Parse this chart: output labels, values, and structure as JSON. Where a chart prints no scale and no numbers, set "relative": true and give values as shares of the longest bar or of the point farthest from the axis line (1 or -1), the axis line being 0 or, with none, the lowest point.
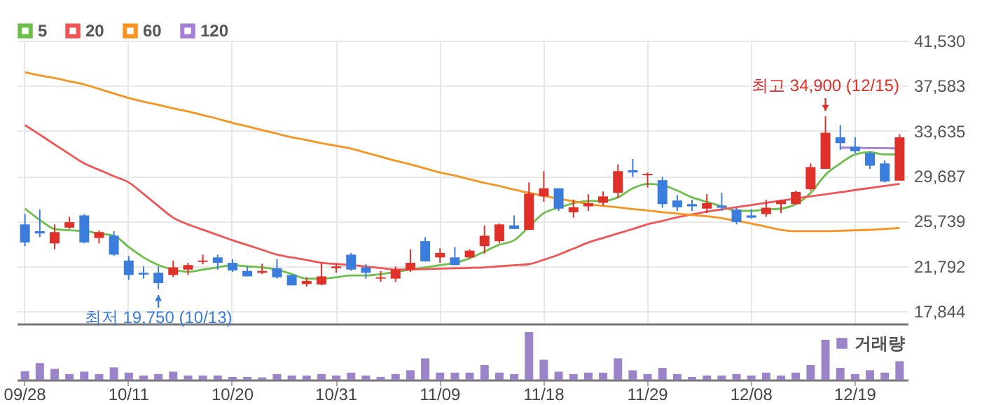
{
  "chart_data": [
    {
      "type": "candlestick",
      "categories": [
        null,
        null,
        null,
        null,
        null,
        null,
        null,
        null,
        null,
        null,
        null,
        null,
        null,
        null,
        null,
        null,
        null,
        null,
        null,
        null,
        null,
        null,
        null,
        null,
        null,
        null,
        null,
        null,
        null,
        null,
        null,
        null,
        null,
        null,
        null,
        null,
        null,
        null,
        null,
        null,
        null,
        null,
        null,
        null,
        null,
        null,
        null,
        null,
        null,
        null,
        null,
        null,
        null,
        null,
        null,
        null,
        null,
        null,
        null,
        null
      ],
      "ohlc": [
        [
          25441,
          26350,
          23544,
          23860
        ],
        [
          24848,
          26746,
          24335,
          24651
        ],
        [
          23781,
          25441,
          23267,
          24769
        ],
        [
          25164,
          26113,
          25045,
          25639
        ],
        [
          26232,
          26350,
          23781,
          23860
        ],
        [
          24256,
          24927,
          23781,
          24769
        ],
        [
          24453,
          24848,
          22674,
          22793
        ],
        [
          22279,
          22674,
          20579,
          21014
        ],
        [
          21211,
          21765,
          20697,
          21053
        ],
        [
          21211,
          21765,
          19750,
          20303
        ],
        [
          21014,
          22279,
          20816,
          21686
        ],
        [
          21488,
          22081,
          21014,
          21884
        ],
        [
          22160,
          22793,
          21963,
          22279
        ],
        [
          22556,
          22793,
          21488,
          22081
        ],
        [
          22081,
          22397,
          21291,
          21409
        ],
        [
          21370,
          21765,
          20895,
          20895
        ],
        [
          21211,
          22002,
          21093,
          21370
        ],
        [
          21607,
          22397,
          20697,
          20816
        ],
        [
          21014,
          21053,
          20105,
          20105
        ],
        [
          20224,
          20816,
          19986,
          20500
        ],
        [
          20184,
          22081,
          20105,
          20895
        ],
        [
          21607,
          22002,
          21211,
          21765
        ],
        [
          22793,
          22951,
          21370,
          21488
        ],
        [
          21686,
          21963,
          20697,
          21211
        ],
        [
          20697,
          21370,
          20421,
          20816
        ],
        [
          20697,
          21765,
          20421,
          21488
        ],
        [
          21488,
          23267,
          21291,
          22081
        ],
        [
          23979,
          24335,
          22200,
          22200
        ],
        [
          22556,
          23346,
          22081,
          22951
        ],
        [
          22556,
          23465,
          21884,
          21884
        ],
        [
          22556,
          23267,
          22476,
          23149
        ],
        [
          23544,
          25362,
          22872,
          24453
        ],
        [
          23979,
          25520,
          23781,
          25441
        ],
        [
          25362,
          26232,
          25045,
          25045
        ],
        [
          24967,
          29118,
          24967,
          28130
        ],
        [
          27892,
          30106,
          27418,
          28604
        ],
        [
          28604,
          28604,
          26627,
          26825
        ],
        [
          26508,
          27615,
          26034,
          26943
        ],
        [
          27022,
          28090,
          26627,
          27299
        ],
        [
          27338,
          28327,
          27101,
          27892
        ],
        [
          28208,
          30699,
          27734,
          30106
        ],
        [
          30185,
          31173,
          29592,
          29988
        ],
        [
          29750,
          29988,
          28683,
          29869
        ],
        [
          29315,
          29592,
          26904,
          27220
        ],
        [
          27536,
          28011,
          26627,
          26943
        ],
        [
          27220,
          27615,
          26627,
          27022
        ],
        [
          26825,
          28090,
          26430,
          27299
        ],
        [
          27101,
          28208,
          26627,
          26904
        ],
        [
          26746,
          26904,
          25441,
          25639
        ],
        [
          26232,
          26786,
          25955,
          26034
        ],
        [
          26350,
          27615,
          26113,
          26904
        ],
        [
          27220,
          27615,
          26430,
          27536
        ],
        [
          27220,
          28406,
          27141,
          28288
        ],
        [
          28525,
          30778,
          28406,
          30462
        ],
        [
          30303,
          34900,
          30303,
          33466
        ],
        [
          33071,
          34138,
          31964,
          32557
        ],
        [
          32241,
          33071,
          31648,
          31845
        ],
        [
          31687,
          31845,
          30303,
          30580
        ],
        [
          30778,
          31055,
          29118,
          29197
        ],
        [
          29276,
          33347,
          29276,
          33071
        ]
      ],
      "colors": [
        "#3b7ddd",
        "#3b7ddd",
        "#e0302a",
        "#e0302a",
        "#3b7ddd",
        "#e0302a",
        "#3b7ddd",
        "#3b7ddd",
        "#3b7ddd",
        "#3b7ddd",
        "#e0302a",
        "#e0302a",
        "#e0302a",
        "#3b7ddd",
        "#3b7ddd",
        "#3b7ddd",
        "#e0302a",
        "#3b7ddd",
        "#3b7ddd",
        "#e0302a",
        "#e0302a",
        "#e0302a",
        "#3b7ddd",
        "#3b7ddd",
        "#e0302a",
        "#e0302a",
        "#e0302a",
        "#3b7ddd",
        "#e0302a",
        "#3b7ddd",
        "#e0302a",
        "#e0302a",
        "#e0302a",
        "#3b7ddd",
        "#e0302a",
        "#e0302a",
        "#3b7ddd",
        "#e0302a",
        "#e0302a",
        "#e0302a",
        "#e0302a",
        "#3b7ddd",
        "#e0302a",
        "#3b7ddd",
        "#3b7ddd",
        "#3b7ddd",
        "#e0302a",
        "#3b7ddd",
        "#3b7ddd",
        "#3b7ddd",
        "#e0302a",
        "#e0302a",
        "#e0302a",
        "#e0302a",
        "#e0302a",
        "#3b7ddd",
        "#3b7ddd",
        "#3b7ddd",
        "#3b7ddd",
        "#e0302a"
      ],
      "series": [
        {
          "name": "5",
          "type": "line",
          "color": "#6cc04a",
          "values": [
            26825,
            25836,
            25045,
            24927,
            24848,
            24651,
            24453,
            23465,
            22556,
            21884,
            21488,
            21291,
            21488,
            21686,
            21884,
            21765,
            21686,
            21488,
            21093,
            20697,
            20697,
            20816,
            20974,
            20974,
            21093,
            21291,
            21488,
            21686,
            21884,
            22081,
            22476,
            23069,
            23662,
            24058,
            25244,
            26430,
            26904,
            27299,
            27497,
            27497,
            27813,
            28604,
            29000,
            28881,
            28406,
            27813,
            27418,
            27022,
            26627,
            26627,
            26746,
            26825,
            27220,
            28208,
            29790,
            30778,
            31569,
            31766,
            31569,
            31569
          ]
        },
        {
          "name": "20",
          "type": "line",
          "color": "#f05454",
          "values": [
            34138,
            33300,
            32440,
            31600,
            30778,
            30220,
            29660,
            29118,
            28100,
            27050,
            26034,
            25441,
            24980,
            24520,
            24058,
            23640,
            23220,
            22793,
            22550,
            22320,
            22081,
            21980,
            21884,
            21750,
            21620,
            21488,
            21500,
            21530,
            21567,
            21600,
            21640,
            21686,
            21780,
            21870,
            21963,
            22350,
            22793,
            23330,
            23860,
            24255,
            24650,
            25045,
            25450,
            25750,
            26060,
            26320,
            26560,
            26760,
            26950,
            27141,
            27330,
            27520,
            27710,
            27900,
            28080,
            28260,
            28450,
            28630,
            28810,
            28999
          ]
        },
        {
          "name": "60",
          "type": "line",
          "color": "#f7931e",
          "values": [
            38763,
            38486,
            38249,
            37972,
            37696,
            37300,
            36905,
            36510,
            36193,
            35917,
            35600,
            35324,
            35008,
            34691,
            34336,
            34020,
            33703,
            33387,
            33071,
            32834,
            32557,
            32320,
            32083,
            31727,
            31371,
            31015,
            30699,
            30343,
            29988,
            29711,
            29395,
            29079,
            28802,
            28485,
            28208,
            27932,
            27695,
            27457,
            27220,
            27062,
            26943,
            26785,
            26667,
            26509,
            26390,
            26272,
            26153,
            25995,
            25758,
            25521,
            25244,
            24968,
            24849,
            24849,
            24849,
            24889,
            24928,
            24968,
            25047,
            25126
          ]
        },
        {
          "name": "120",
          "type": "line",
          "color": "#a57fd6",
          "values": [
            null,
            null,
            null,
            null,
            null,
            null,
            null,
            null,
            null,
            null,
            null,
            null,
            null,
            null,
            null,
            null,
            null,
            null,
            null,
            null,
            null,
            null,
            null,
            null,
            null,
            null,
            null,
            null,
            null,
            null,
            null,
            null,
            null,
            null,
            null,
            null,
            null,
            null,
            null,
            null,
            null,
            null,
            null,
            null,
            null,
            null,
            null,
            null,
            null,
            null,
            null,
            null,
            null,
            null,
            null,
            32161,
            32161,
            32120,
            32120,
            32083
          ]
        }
      ],
      "ylim": [
        16750,
        41530
      ],
      "yticks": [
        {
          "value": 17844,
          "label": "17,844"
        },
        {
          "value": 21792,
          "label": "21,792"
        },
        {
          "value": 25739,
          "label": "25,739"
        },
        {
          "value": 29687,
          "label": "29,687"
        },
        {
          "value": 33635,
          "label": "33,635"
        },
        {
          "value": 37583,
          "label": "37,583"
        },
        {
          "value": 41530,
          "label": "41,530"
        }
      ],
      "grid": true,
      "legend": "top left",
      "marker": "none",
      "tick_labels": "y",
      "annotations": [
        {
          "text": "최저 19,750 (10/13)",
          "y": 19750
        },
        {
          "text": "최고 34,900 (12/15)",
          "y": 34900
        }
      ]
    },
    {
      "type": "bar",
      "relative": true,
      "legend": "top right",
      "tick_labels": "x",
      "categories": [
        "09/28",
        null,
        null,
        null,
        null,
        null,
        null,
        "10/11",
        null,
        null,
        null,
        null,
        null,
        null,
        "10/20",
        null,
        null,
        null,
        null,
        null,
        null,
        "10/31",
        null,
        null,
        null,
        null,
        null,
        null,
        "11/09",
        null,
        null,
        null,
        null,
        null,
        null,
        "11/18",
        null,
        null,
        null,
        null,
        null,
        null,
        "11/29",
        null,
        null,
        null,
        null,
        null,
        null,
        "12/08",
        null,
        null,
        null,
        null,
        null,
        null,
        "12/19",
        null,
        null,
        null
      ],
      "series": [
        {
          "name": "거래량",
          "color": "#9b84c8",
          "values": [
            0.18,
            0.35,
            0.23,
            0.12,
            0.17,
            0.12,
            0.26,
            0.15,
            0.09,
            0.12,
            0.17,
            0.09,
            0.09,
            0.09,
            0.06,
            0.06,
            0.05,
            0.12,
            0.09,
            0.09,
            0.12,
            0.09,
            0.15,
            0.09,
            0.06,
            0.12,
            0.2,
            0.45,
            0.15,
            0.15,
            0.15,
            0.31,
            0.15,
            0.12,
            1,
            0.42,
            0.17,
            0.12,
            0.15,
            0.15,
            0.45,
            0.2,
            0.12,
            0.25,
            0.12,
            0.06,
            0.09,
            0.09,
            0.12,
            0.09,
            0.15,
            0.09,
            0.15,
            0.31,
            0.84,
            0.25,
            0.12,
            0.2,
            0.15,
            0.39
          ]
        }
      ]
    }
  ]
}
